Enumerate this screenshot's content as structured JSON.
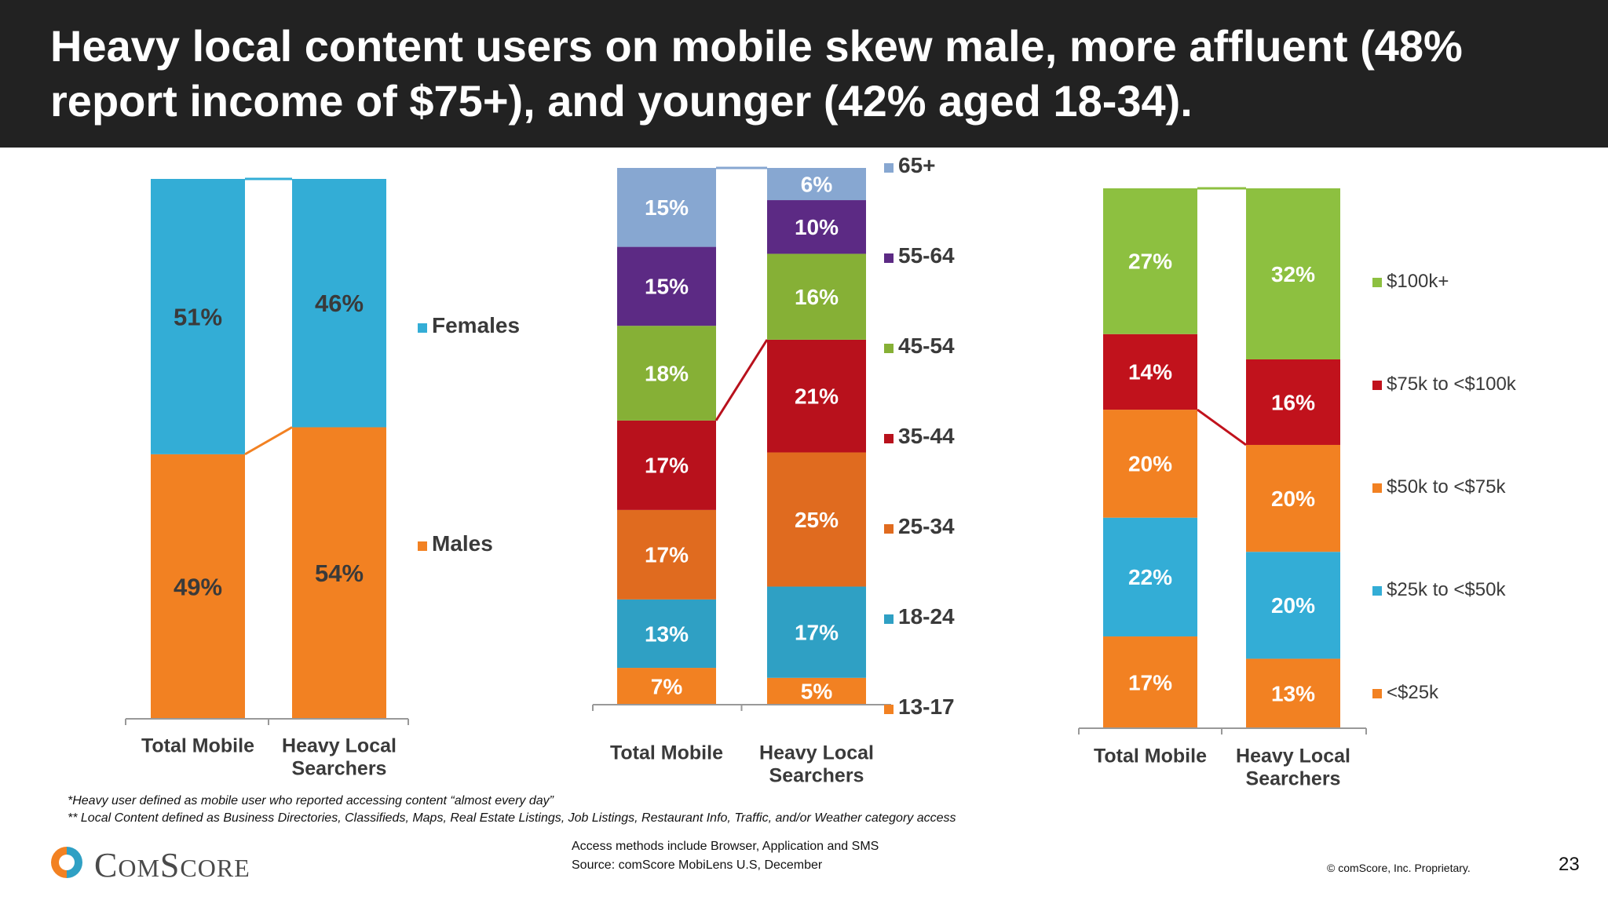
{
  "title": "Heavy local content users on mobile skew male, more affluent (48% report income of $75+), and younger (42% aged 18-34).",
  "footnotes": {
    "heavy_user": "*Heavy user defined as mobile user who reported accessing content “almost every day”",
    "local_content": "** Local Content defined as Business Directories, Classifieds, Maps, Real Estate Listings, Job Listings, Restaurant Info, Traffic, and/or Weather category access"
  },
  "source": {
    "access": "Access methods include Browser, Application and SMS",
    "source": "Source: comScore MobiLens U.S, December"
  },
  "copyright": "© comScore, Inc. Proprietary.",
  "page_number": "23",
  "logo": {
    "text": "comScore",
    "display": "COMSCORE"
  },
  "chart_data": [
    {
      "type": "bar",
      "stacked": true,
      "categories": [
        "Total Mobile",
        "Heavy Local Searchers"
      ],
      "series": [
        {
          "name": "Males",
          "values": [
            49,
            54
          ],
          "color": "#F28122"
        },
        {
          "name": "Females",
          "values": [
            51,
            46
          ],
          "color": "#33ADD6"
        }
      ],
      "unit": "%",
      "legend_position": "right",
      "connector_lines": true
    },
    {
      "type": "bar",
      "stacked": true,
      "categories": [
        "Total Mobile",
        "Heavy Local Searchers"
      ],
      "series": [
        {
          "name": "13-17",
          "values": [
            7,
            5
          ],
          "color": "#F28122"
        },
        {
          "name": "18-24",
          "values": [
            13,
            17
          ],
          "color": "#2FA0C4"
        },
        {
          "name": "25-34",
          "values": [
            17,
            25
          ],
          "color": "#E06B1F"
        },
        {
          "name": "35-44",
          "values": [
            17,
            21
          ],
          "color": "#B8111C"
        },
        {
          "name": "45-54",
          "values": [
            18,
            16
          ],
          "color": "#86B036"
        },
        {
          "name": "55-64",
          "values": [
            15,
            10
          ],
          "color": "#5C2A84"
        },
        {
          "name": "65+",
          "values": [
            15,
            6
          ],
          "color": "#87A7D1"
        }
      ],
      "unit": "%",
      "legend_position": "right",
      "connector_lines": true
    },
    {
      "type": "bar",
      "stacked": true,
      "categories": [
        "Total Mobile",
        "Heavy Local Searchers"
      ],
      "series": [
        {
          "name": "<$25k",
          "values": [
            17,
            13
          ],
          "color": "#F28122"
        },
        {
          "name": "$25k to <$50k",
          "values": [
            22,
            20
          ],
          "color": "#33ADD6"
        },
        {
          "name": "$50k to <$75k",
          "values": [
            20,
            20
          ],
          "color": "#F28122"
        },
        {
          "name": "$75k to <$100k",
          "values": [
            14,
            16
          ],
          "color": "#C1121C"
        },
        {
          "name": "$100k+",
          "values": [
            27,
            32
          ],
          "color": "#8DC040"
        }
      ],
      "unit": "%",
      "legend_position": "right",
      "connector_lines": true
    }
  ]
}
